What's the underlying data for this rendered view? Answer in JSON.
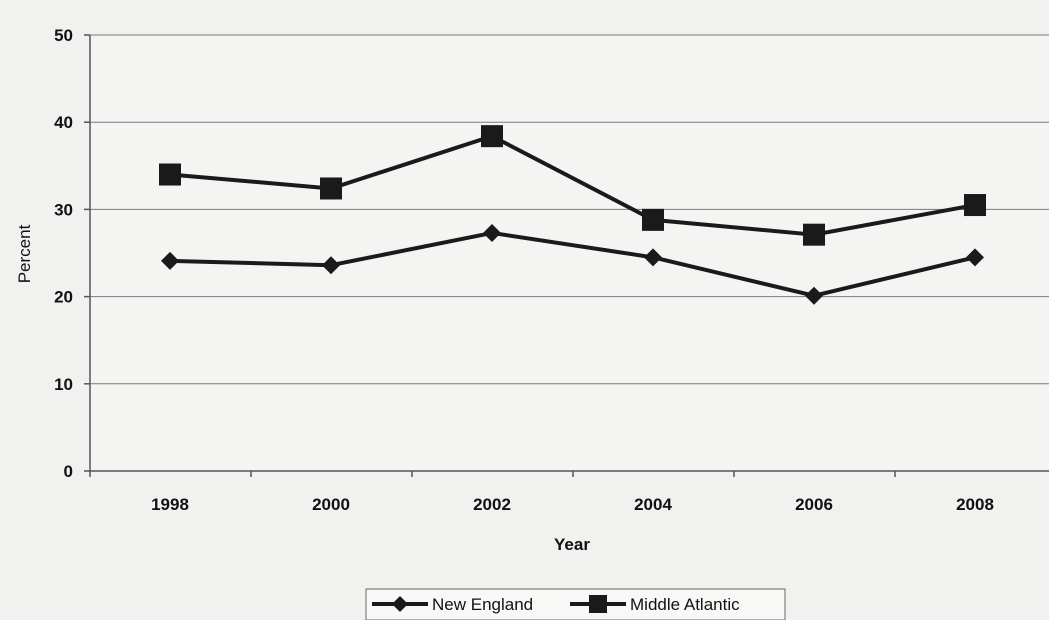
{
  "chart_data": {
    "type": "line",
    "title": "",
    "xlabel": "Year",
    "ylabel": "Percent",
    "categories": [
      "1998",
      "2000",
      "2002",
      "2004",
      "2006",
      "2008"
    ],
    "y_ticks": [
      "0",
      "10",
      "20",
      "30",
      "40",
      "50"
    ],
    "ylim": [
      0,
      50
    ],
    "grid": true,
    "legend_position": "bottom",
    "series": [
      {
        "name": "New England",
        "marker": "diamond",
        "color": "#1a1a1a",
        "values": [
          24.1,
          23.6,
          27.3,
          24.5,
          20.1,
          24.5
        ]
      },
      {
        "name": "Middle Atlantic",
        "marker": "square",
        "color": "#1a1a1a",
        "values": [
          34.0,
          32.4,
          38.4,
          28.8,
          27.1,
          30.5
        ]
      }
    ]
  }
}
